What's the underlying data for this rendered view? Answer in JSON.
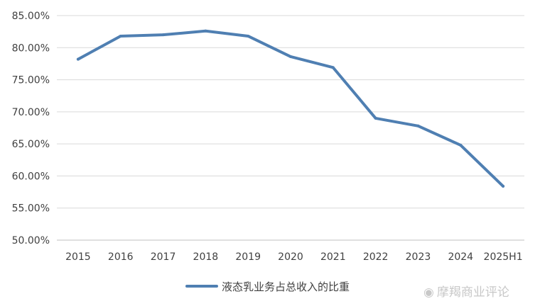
{
  "chart_data": {
    "type": "line",
    "title": "",
    "xlabel": "",
    "ylabel": "",
    "categories": [
      "2015",
      "2016",
      "2017",
      "2018",
      "2019",
      "2020",
      "2021",
      "2022",
      "2023",
      "2024",
      "2025H1"
    ],
    "series": [
      {
        "name": "液态乳业务占总收入的比重",
        "values": [
          78.2,
          81.8,
          82.0,
          82.6,
          81.8,
          78.6,
          76.9,
          69.0,
          67.8,
          64.8,
          58.4
        ],
        "color": "#4f7fb2"
      }
    ],
    "ylim": [
      50,
      85
    ],
    "yticks": [
      50,
      55,
      60,
      65,
      70,
      75,
      80,
      85
    ],
    "ytick_labels": [
      "50.00%",
      "55.00%",
      "60.00%",
      "65.00%",
      "70.00%",
      "75.00%",
      "80.00%",
      "85.00%"
    ],
    "grid": true,
    "legend_position": "bottom"
  },
  "watermark": {
    "icon": "weibo-icon",
    "text": "摩羯商业评论"
  }
}
